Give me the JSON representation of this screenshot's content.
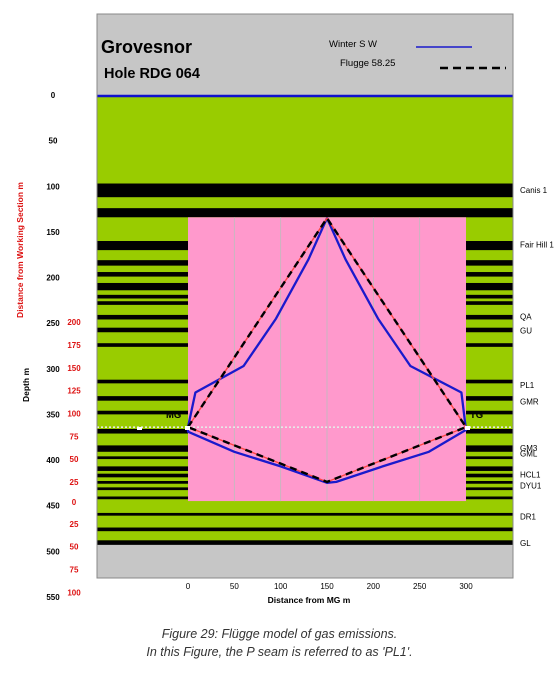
{
  "chart_data": {
    "type": "line",
    "title": "Grovesnor",
    "subtitle": "Hole RDG 064",
    "xlabel": "Distance from MG m",
    "ylabel": "Depth m",
    "ylabel2": "Distance from Working Section m",
    "x_ticks": [
      0,
      50,
      100,
      150,
      200,
      250,
      300
    ],
    "y_ticks": [
      0,
      50,
      100,
      150,
      200,
      250,
      300,
      350,
      400,
      450,
      500,
      550
    ],
    "xlim": [
      -100,
      360
    ],
    "ylim": [
      550,
      0
    ],
    "roof_ticks": [
      {
        "label": "200",
        "depth": 249
      },
      {
        "label": "175",
        "depth": 274
      },
      {
        "label": "150",
        "depth": 299
      },
      {
        "label": "125",
        "depth": 324
      },
      {
        "label": "100",
        "depth": 349
      },
      {
        "label": "75",
        "depth": 374
      },
      {
        "label": "50",
        "depth": 399
      },
      {
        "label": "25",
        "depth": 424
      }
    ],
    "zero_tick": {
      "label": "0",
      "depth": 446
    },
    "floor_ticks": [
      {
        "label": "25",
        "depth": 470
      },
      {
        "label": "50",
        "depth": 495
      },
      {
        "label": "75",
        "depth": 520
      },
      {
        "label": "100",
        "depth": 545
      }
    ],
    "seams": [
      {
        "label": "Canis 1",
        "depth": 104
      },
      {
        "label": "Fair Hill 1",
        "depth": 164
      },
      {
        "label": "QA",
        "depth": 243
      },
      {
        "label": "GU",
        "depth": 258
      },
      {
        "label": "PL1",
        "depth": 318
      },
      {
        "label": "GMR",
        "depth": 336
      },
      {
        "label": "GM3",
        "depth": 387
      },
      {
        "label": "GML",
        "depth": 393
      },
      {
        "label": "HCL1",
        "depth": 416
      },
      {
        "label": "DYU1",
        "depth": 428
      },
      {
        "label": "DR1",
        "depth": 462
      },
      {
        "label": "GL",
        "depth": 491
      }
    ],
    "seam_line_label": {
      "mg": "MG",
      "tg": "TG"
    },
    "region": {
      "x": [
        0,
        300
      ],
      "depth_top": 134,
      "depth_bottom": 445
    },
    "series": [
      {
        "name": "Winter S W",
        "color": "#1a1acc",
        "x": [
          0,
          8,
          60,
          95,
          130,
          150,
          170,
          205,
          240,
          295,
          300,
          260,
          210,
          160,
          150,
          100,
          50,
          0,
          0
        ],
        "y": [
          364,
          326,
          297,
          245,
          180,
          135,
          180,
          245,
          297,
          326,
          367,
          391,
          407,
          424,
          425,
          407,
          391,
          369,
          364
        ]
      },
      {
        "name": "Flugge 58.25",
        "color": "#000000",
        "x": [
          0,
          150,
          300,
          150,
          0
        ],
        "y": [
          364,
          135,
          364,
          424,
          364
        ]
      }
    ],
    "legend_position": "top-right",
    "grid": true
  },
  "caption": {
    "line1": "Figure 29: Flügge model of gas emissions.",
    "line2": "In this Figure, the P seam is referred to as 'PL1'."
  }
}
